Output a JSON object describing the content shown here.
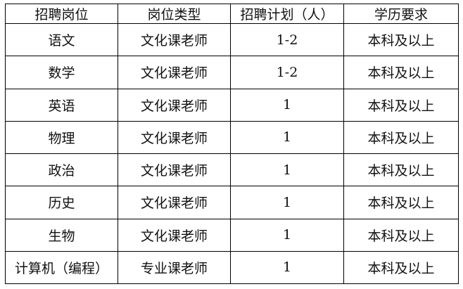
{
  "table": {
    "headers": [
      "招聘岗位",
      "岗位类型",
      "招聘计划（人）",
      "学历要求"
    ],
    "rows": [
      [
        "语文",
        "文化课老师",
        "1-2",
        "本科及以上"
      ],
      [
        "数学",
        "文化课老师",
        "1-2",
        "本科及以上"
      ],
      [
        "英语",
        "文化课老师",
        "1",
        "本科及以上"
      ],
      [
        "物理",
        "文化课老师",
        "1",
        "本科及以上"
      ],
      [
        "政治",
        "文化课老师",
        "1",
        "本科及以上"
      ],
      [
        "历史",
        "文化课老师",
        "1",
        "本科及以上"
      ],
      [
        "生物",
        "文化课老师",
        "1",
        "本科及以上"
      ],
      [
        "计算机（编程）",
        "专业课老师",
        "1",
        "本科及以上"
      ]
    ]
  }
}
